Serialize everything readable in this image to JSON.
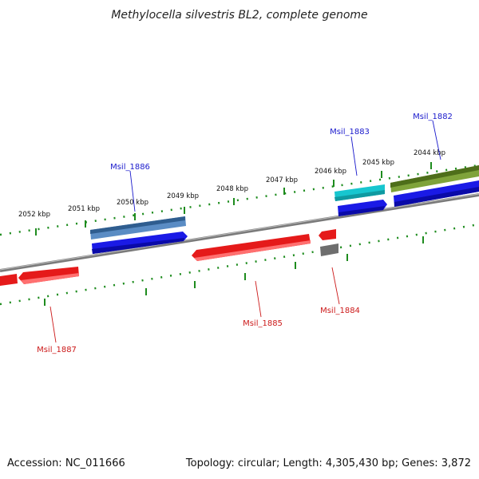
{
  "title": "Methylocella silvestris BL2, complete genome",
  "footer": {
    "accession": "Accession: NC_011666",
    "topology": "Topology: circular; Length: 4,305,430 bp; Genes: 3,872"
  },
  "ticks": [
    "2044 kbp",
    "2045 kbp",
    "2046 kbp",
    "2047 kbp",
    "2048 kbp",
    "2049 kbp",
    "2050 kbp",
    "2051 kbp",
    "2052 kbp"
  ],
  "gene_labels": {
    "msil_1882": "Msil_1882",
    "msil_1883": "Msil_1883",
    "msil_1884": "Msil_1884",
    "msil_1885": "Msil_1885",
    "msil_1886": "Msil_1886",
    "msil_1887": "Msil_1887"
  },
  "colors": {
    "backbone": "#7a7a7a",
    "tick_green": "#1e8c1e",
    "forward_label": "#1a1acc",
    "reverse_label": "#cc1a1a",
    "gene_red": "#e51a1a",
    "gene_blue": "#1a1ae6",
    "gene_steelblue": "#4a78b0",
    "gene_cyan": "#17c6cf",
    "gene_olive": "#6b8f2a",
    "gene_gray": "#6e6e6e"
  }
}
